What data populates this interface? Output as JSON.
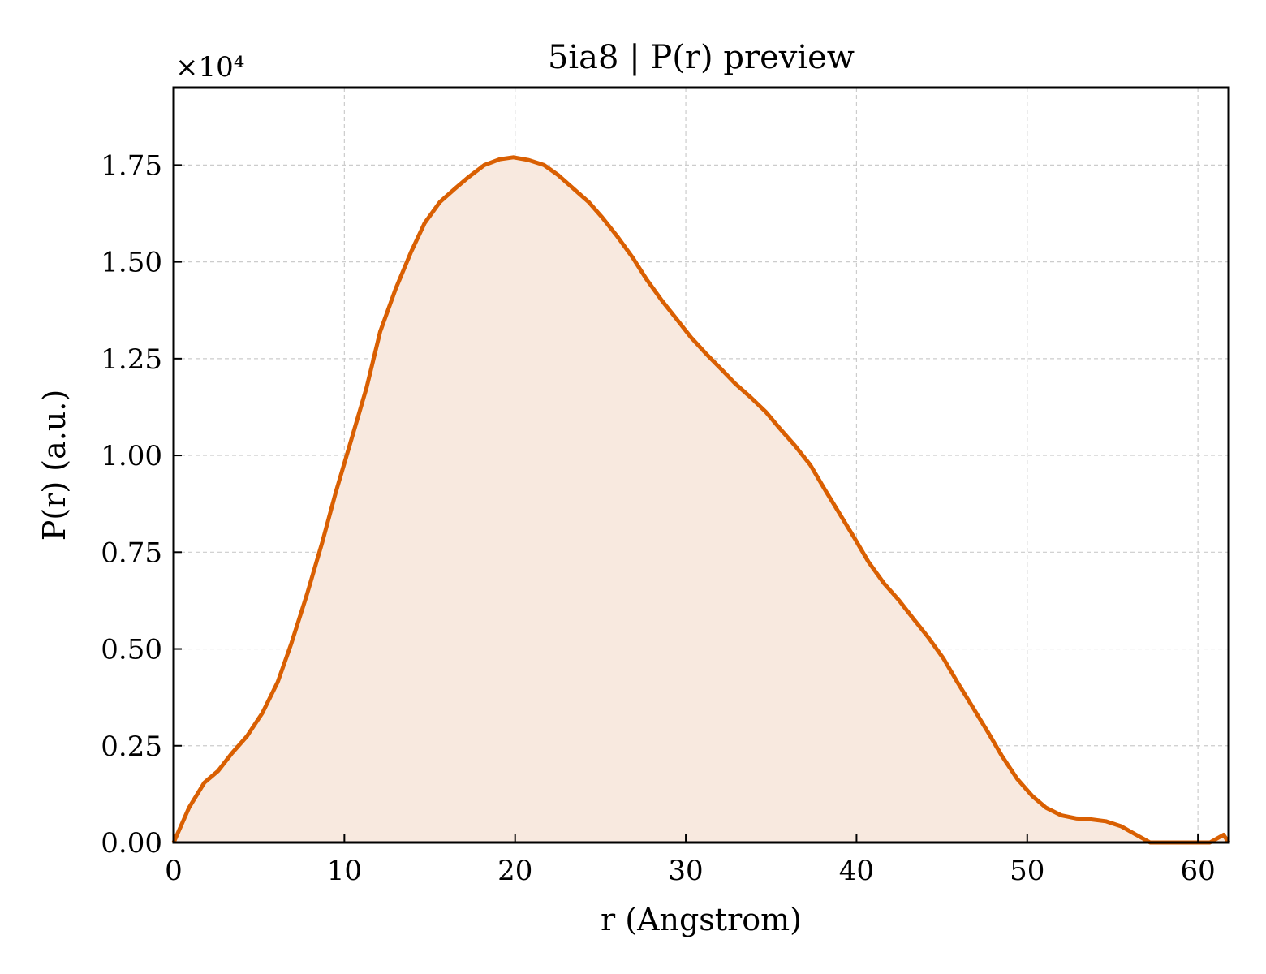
{
  "chart_data": {
    "type": "area",
    "title": "5ia8 | P(r) preview",
    "xlabel": "r (Angstrom)",
    "ylabel": "P(r) (a.u.)",
    "y_offset_label": "×10⁴",
    "xlim": [
      0,
      61.8
    ],
    "ylim": [
      0,
      1.95
    ],
    "x_ticks": [
      0,
      10,
      20,
      30,
      40,
      50,
      60
    ],
    "x_tick_labels": [
      "0",
      "10",
      "20",
      "30",
      "40",
      "50",
      "60"
    ],
    "y_ticks": [
      0,
      0.25,
      0.5,
      0.75,
      1.0,
      1.25,
      1.5,
      1.75
    ],
    "y_tick_labels": [
      "0.00",
      "0.25",
      "0.50",
      "0.75",
      "1.00",
      "1.25",
      "1.50",
      "1.75"
    ],
    "grid": true,
    "colors": {
      "line": "#d95f02",
      "fill": "#f8e9df"
    },
    "series": [
      {
        "x": [
          0,
          0.9,
          1.8,
          2.6,
          3.4,
          4.3,
          5.2,
          6.1,
          6.9,
          7.8,
          8.7,
          9.5,
          10.4,
          11.3,
          12.1,
          13.0,
          13.9,
          14.7,
          15.6,
          16.5,
          17.3,
          18.2,
          19.1,
          19.9,
          20.8,
          21.7,
          22.5,
          23.4,
          24.3,
          25.1,
          26.0,
          26.9,
          27.7,
          28.6,
          29.5,
          30.3,
          31.2,
          32.1,
          32.9,
          33.8,
          34.7,
          35.5,
          36.4,
          37.3,
          38.1,
          39.0,
          39.9,
          40.7,
          41.6,
          42.5,
          43.3,
          44.2,
          45.1,
          45.9,
          46.8,
          47.7,
          48.5,
          49.4,
          50.3,
          51.1,
          52.0,
          52.9,
          53.7,
          54.6,
          55.5,
          56.3,
          57.2,
          58.1,
          58.9,
          59.8,
          60.7,
          61.5,
          61.8
        ],
        "values": [
          0.0,
          0.09,
          0.155,
          0.185,
          0.23,
          0.275,
          0.335,
          0.415,
          0.515,
          0.64,
          0.775,
          0.905,
          1.04,
          1.175,
          1.32,
          1.43,
          1.525,
          1.6,
          1.655,
          1.69,
          1.72,
          1.75,
          1.765,
          1.77,
          1.763,
          1.75,
          1.725,
          1.69,
          1.655,
          1.615,
          1.565,
          1.51,
          1.455,
          1.4,
          1.35,
          1.305,
          1.262,
          1.222,
          1.185,
          1.15,
          1.112,
          1.07,
          1.025,
          0.975,
          0.915,
          0.85,
          0.785,
          0.725,
          0.67,
          0.625,
          0.58,
          0.53,
          0.475,
          0.415,
          0.35,
          0.285,
          0.225,
          0.165,
          0.12,
          0.09,
          0.07,
          0.062,
          0.06,
          0.055,
          0.042,
          0.022,
          0.0,
          0.0,
          0.0,
          0.0,
          0.0,
          0.02,
          0.0
        ]
      }
    ]
  }
}
